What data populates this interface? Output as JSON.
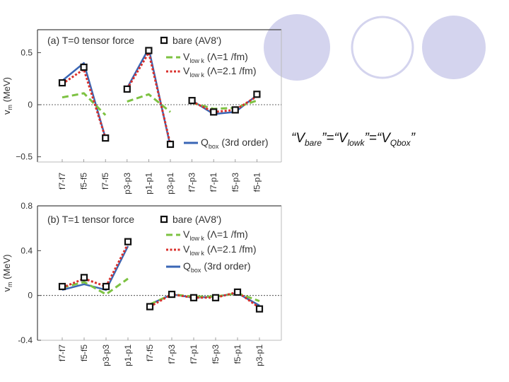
{
  "colors": {
    "bare": "#111111",
    "vlowk1": "#7dc242",
    "vlowk21": "#d9302c",
    "qbox": "#3a66b5",
    "circle_fill": "#d4d4ee",
    "circle_stroke": "#d4d4ee"
  },
  "equation": {
    "q1": "“V",
    "bare_sub": "bare",
    "q2": "”=“V",
    "lowk_sub": "lowk",
    "q3": "”=“V",
    "qbox_sub": "Qbox",
    "q4": "”"
  },
  "chart_data": [
    {
      "type": "line",
      "panel": "a",
      "title": "(a) T=0 tensor force",
      "ylabel": "v_m (MeV)",
      "ylim": [
        -0.55,
        0.72
      ],
      "yticks": [
        -0.5,
        0,
        0.5
      ],
      "ytick_labels": [
        "−0.5",
        "0",
        "0.5"
      ],
      "categories": [
        "f7-f7",
        "f5-f5",
        "f7-f5",
        "p3-p3",
        "p1-p1",
        "p3-p1",
        "f7-p3",
        "f7-p1",
        "f5-p3",
        "f5-p1"
      ],
      "segments": [
        [
          0,
          2
        ],
        [
          3,
          5
        ],
        [
          6,
          9
        ]
      ],
      "series": [
        {
          "name": "bare (AV8')",
          "style": "markers",
          "values": [
            0.21,
            0.36,
            -0.32,
            0.15,
            0.52,
            -0.38,
            0.04,
            -0.07,
            -0.05,
            0.1
          ]
        },
        {
          "name": "Vlowk (Λ=1 /fm)",
          "style": "dash",
          "values": [
            0.07,
            0.11,
            -0.1,
            0.03,
            0.1,
            -0.07,
            0.02,
            -0.04,
            -0.03,
            0.04
          ]
        },
        {
          "name": "Vlowk (Λ=2.1 /fm)",
          "style": "dot",
          "values": [
            0.2,
            0.34,
            -0.32,
            0.15,
            0.5,
            -0.38,
            0.03,
            -0.07,
            -0.05,
            0.08
          ]
        },
        {
          "name": "Qbox (3rd order)",
          "style": "solid",
          "values": [
            0.23,
            0.4,
            -0.32,
            0.16,
            0.54,
            -0.4,
            0.04,
            -0.09,
            -0.07,
            0.09
          ]
        }
      ],
      "legend": {
        "bare": "bare (AV8')",
        "vlowk1_main": "V",
        "vlowk1_sub": "low k",
        "vlowk1_tail": "(Λ=1 /fm)",
        "vlowk21_main": "V",
        "vlowk21_sub": "low k",
        "vlowk21_tail": "(Λ=2.1 /fm)",
        "qbox_main": "Q",
        "qbox_sub": "box",
        "qbox_tail": "(3rd order)"
      }
    },
    {
      "type": "line",
      "panel": "b",
      "title": "(b) T=1 tensor force",
      "ylabel": "v_m (MeV)",
      "ylim": [
        -0.4,
        0.8
      ],
      "yticks": [
        -0.4,
        0,
        0.4,
        0.8
      ],
      "ytick_labels": [
        "-0.4",
        "0",
        "0.4",
        "0.8"
      ],
      "categories": [
        "f7-f7",
        "f5-f5",
        "p3-p3",
        "p1-p1",
        "f7-f5",
        "f7-p3",
        "f7-p1",
        "f5-p3",
        "f5-p1",
        "p3-p1"
      ],
      "segments": [
        [
          0,
          3
        ],
        [
          4,
          9
        ]
      ],
      "series": [
        {
          "name": "bare (AV8')",
          "style": "markers",
          "values": [
            0.08,
            0.16,
            0.08,
            0.48,
            -0.1,
            0.01,
            -0.02,
            -0.02,
            0.03,
            -0.12
          ]
        },
        {
          "name": "Vlowk (Λ=1 /fm)",
          "style": "dash",
          "values": [
            0.07,
            0.12,
            0.01,
            0.15,
            -0.08,
            0.01,
            -0.01,
            -0.01,
            0.02,
            -0.05
          ]
        },
        {
          "name": "Vlowk (Λ=2.1 /fm)",
          "style": "dot",
          "values": [
            0.07,
            0.15,
            0.08,
            0.46,
            -0.1,
            0.01,
            -0.02,
            -0.02,
            0.03,
            -0.11
          ]
        },
        {
          "name": "Qbox (3rd order)",
          "style": "solid",
          "values": [
            0.05,
            0.1,
            0.05,
            0.44,
            -0.08,
            0.01,
            -0.02,
            -0.01,
            0.02,
            -0.09
          ]
        }
      ],
      "legend": {
        "bare": "bare (AV8')",
        "vlowk1_main": "V",
        "vlowk1_sub": "low k",
        "vlowk1_tail": "(Λ=1 /fm)",
        "vlowk21_main": "V",
        "vlowk21_sub": "low k",
        "vlowk21_tail": "(Λ=2.1 /fm)",
        "qbox_main": "Q",
        "qbox_sub": "box",
        "qbox_tail": "(3rd order)"
      }
    }
  ]
}
